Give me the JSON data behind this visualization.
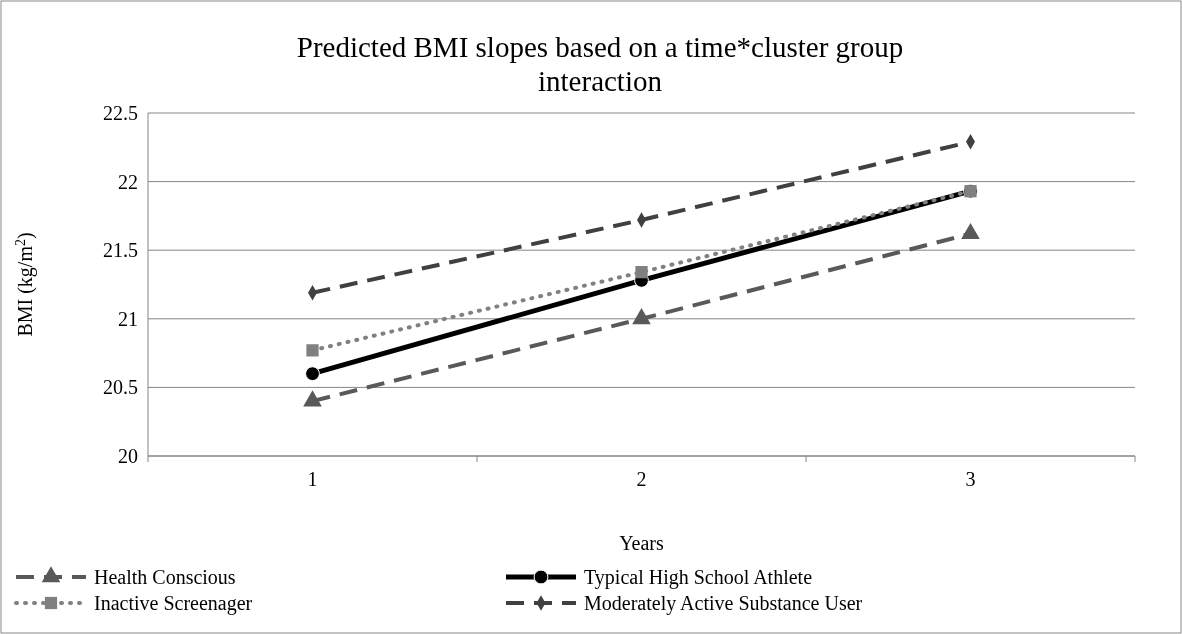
{
  "chart_data": {
    "type": "line",
    "title": "Predicted BMI slopes based on a time*cluster group interaction",
    "xlabel": "Years",
    "ylabel": "BMI (kg/m$^{2}$)",
    "categories": [
      "1",
      "2",
      "3"
    ],
    "ylim": [
      20,
      22.5
    ],
    "yticks": [
      20,
      20.5,
      21,
      21.5,
      22,
      22.5
    ],
    "grid": "y",
    "legend": "bottom",
    "series": [
      {
        "name": "Health Conscious",
        "color": "#595959",
        "values": [
          20.4,
          21.0,
          21.62
        ],
        "marker": "triangle",
        "line_style": "dashed"
      },
      {
        "name": "Typical High School Athlete",
        "color": "#000000",
        "values": [
          20.6,
          21.28,
          21.93
        ],
        "marker": "circle",
        "line_style": "solid"
      },
      {
        "name": "Inactive Screenager",
        "color": "#808080",
        "values": [
          20.77,
          21.34,
          21.93
        ],
        "marker": "square",
        "line_style": "dotted"
      },
      {
        "name": "Moderately Active Substance User",
        "color": "#404040",
        "values": [
          21.19,
          21.72,
          22.29
        ],
        "marker": "diamond",
        "line_style": "dashed"
      }
    ]
  }
}
